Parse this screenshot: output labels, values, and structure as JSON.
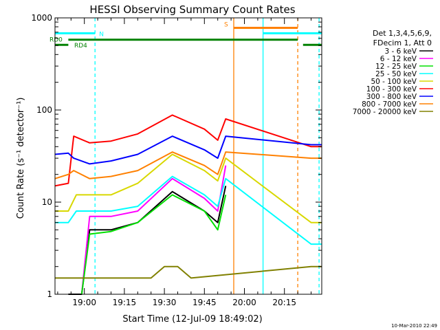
{
  "chart_data": {
    "type": "line",
    "title": "HESSI Observing Summary Count Rates",
    "xlabel": "Start Time (12-Jul-09 18:49:02)",
    "ylabel": "Count Rate (s⁻¹ detector⁻¹)",
    "yscale": "log",
    "ylim": [
      1,
      1000
    ],
    "x_range": [
      "18:49",
      "20:29"
    ],
    "x_ticks": [
      "19:00",
      "19:15",
      "19:30",
      "19:45",
      "20:00",
      "20:15"
    ],
    "y_ticks": [
      "1",
      "10",
      "100",
      "1000"
    ],
    "legend_position": "top-right",
    "legend_header": [
      "Det 1,3,4,5,6,9,",
      "FDecim 1, Att 0"
    ],
    "series": [
      {
        "name": "3 - 6 keV",
        "color": "#000000",
        "x": [
          "18:54",
          "18:59",
          "19:02",
          "19:10",
          "19:20",
          "19:33",
          "19:45",
          "19:50",
          "19:53"
        ],
        "y": [
          1,
          1,
          5,
          5,
          6,
          13,
          8,
          6,
          15
        ]
      },
      {
        "name": "6 - 12 keV",
        "color": "#ff00ff",
        "x": [
          "18:59",
          "19:02",
          "19:10",
          "19:20",
          "19:33",
          "19:45",
          "19:50",
          "19:53"
        ],
        "y": [
          1,
          7,
          7,
          8,
          18,
          11,
          8,
          25
        ]
      },
      {
        "name": "12 - 25 keV",
        "color": "#00e000",
        "x": [
          "18:59",
          "19:02",
          "19:10",
          "19:20",
          "19:33",
          "19:45",
          "19:50",
          "19:53"
        ],
        "y": [
          1,
          4.5,
          4.8,
          6,
          12,
          8,
          5,
          12
        ]
      },
      {
        "name": "25 - 50 keV",
        "color": "#00ffff",
        "x": [
          "18:49",
          "18:54",
          "18:57",
          "19:02",
          "19:10",
          "19:20",
          "19:33",
          "19:45",
          "19:50",
          "19:53",
          "20:25",
          "20:29"
        ],
        "y": [
          6,
          6,
          8,
          8,
          8,
          9,
          19,
          12,
          9,
          18,
          3.5,
          3.5
        ]
      },
      {
        "name": "50 - 100 keV",
        "color": "#d8d800",
        "x": [
          "18:49",
          "18:54",
          "18:57",
          "19:02",
          "19:10",
          "19:20",
          "19:33",
          "19:45",
          "19:50",
          "19:53",
          "20:25",
          "20:29"
        ],
        "y": [
          8,
          8,
          12,
          12,
          12,
          16,
          33,
          22,
          17,
          30,
          6,
          6
        ]
      },
      {
        "name": "100 - 300 keV",
        "color": "#ff0000",
        "x": [
          "18:49",
          "18:54",
          "18:56",
          "19:02",
          "19:10",
          "19:20",
          "19:33",
          "19:45",
          "19:50",
          "19:53",
          "20:25",
          "20:29"
        ],
        "y": [
          15,
          16,
          52,
          44,
          46,
          55,
          88,
          62,
          47,
          80,
          40,
          40
        ]
      },
      {
        "name": "300 - 800 keV",
        "color": "#0000ff",
        "x": [
          "18:49",
          "18:54",
          "18:56",
          "19:02",
          "19:10",
          "19:20",
          "19:33",
          "19:45",
          "19:50",
          "19:53",
          "20:25",
          "20:29"
        ],
        "y": [
          33,
          34,
          30,
          26,
          28,
          33,
          52,
          37,
          30,
          52,
          42,
          42
        ]
      },
      {
        "name": "800 - 7000 keV",
        "color": "#ff8000",
        "x": [
          "18:49",
          "18:54",
          "18:56",
          "19:02",
          "19:10",
          "19:20",
          "19:33",
          "19:45",
          "19:50",
          "19:53",
          "20:25",
          "20:29"
        ],
        "y": [
          18,
          20,
          22,
          18,
          19,
          22,
          35,
          25,
          20,
          35,
          30,
          30
        ]
      },
      {
        "name": "7000 - 20000 keV",
        "color": "#808000",
        "x": [
          "18:49",
          "18:54",
          "19:25",
          "19:30",
          "19:35",
          "19:40",
          "20:25",
          "20:29"
        ],
        "y": [
          1.5,
          1.5,
          1.5,
          2,
          2,
          1.5,
          2,
          2
        ]
      }
    ],
    "annotations": [
      {
        "text": "N",
        "color": "#00ffff"
      },
      {
        "text": "S",
        "color": "#ff8000"
      },
      {
        "text": "RD0",
        "color": "#008000"
      },
      {
        "text": "RD4",
        "color": "#008000"
      }
    ],
    "status_bars": [
      {
        "label": "N",
        "color": "#00ffff",
        "y": 680,
        "start": "18:49",
        "end": "19:04"
      },
      {
        "label": "N",
        "color": "#00ffff",
        "y": 680,
        "start": "20:07",
        "end": "20:29"
      },
      {
        "label": "S",
        "color": "#ff8000",
        "y": 780,
        "start": "19:56",
        "end": "20:20"
      },
      {
        "label": "RD0",
        "color": "#008000",
        "y": 580,
        "start": "18:54",
        "end": "20:20"
      },
      {
        "label": "RD4",
        "color": "#008000",
        "y": 510,
        "start": "18:49",
        "end": "18:54"
      },
      {
        "label": "RD4",
        "color": "#008000",
        "y": 510,
        "start": "20:22",
        "end": "20:29"
      }
    ],
    "vertical_markers": [
      {
        "time": "19:04",
        "color": "#00ffff",
        "style": "dashed"
      },
      {
        "time": "19:56",
        "color": "#ff8000",
        "style": "solid"
      },
      {
        "time": "20:07",
        "color": "#00ffff",
        "style": "solid"
      },
      {
        "time": "20:20",
        "color": "#ff8000",
        "style": "dashed"
      },
      {
        "time": "20:28",
        "color": "#00ffff",
        "style": "dashed"
      }
    ],
    "footer_timestamp": "10-Mar-2010 22:49"
  }
}
